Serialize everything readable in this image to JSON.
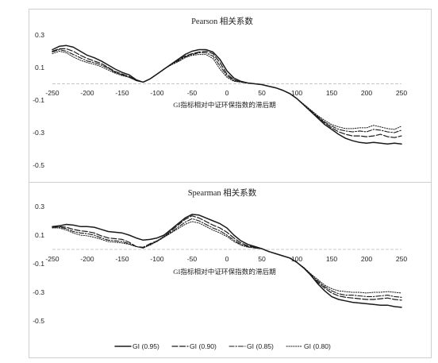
{
  "chart_data": [
    {
      "type": "line",
      "title": "Pearson 相关系数",
      "xlabel": "GI指标相对中证环保指数的滞后期",
      "ylabel": "",
      "xlim": [
        -250,
        250
      ],
      "ylim": [
        -0.5,
        0.3
      ],
      "xticks": [
        -250,
        -200,
        -150,
        -100,
        -50,
        0,
        50,
        100,
        150,
        200,
        250
      ],
      "yticks": [
        0.3,
        0.1,
        -0.1,
        -0.3,
        -0.5
      ],
      "xtick_labels": [
        "-250",
        "-200",
        "-150",
        "-100",
        "-50",
        "0",
        "50",
        "100",
        "150",
        "200",
        "250"
      ],
      "ytick_labels": [
        "0.3",
        "0.1",
        "-0.1",
        "-0.3",
        "-0.5"
      ],
      "zero_line": true,
      "series": [
        {
          "name": "GI (0.95)",
          "style": "solid",
          "x": [
            -250,
            -240,
            -230,
            -220,
            -210,
            -200,
            -190,
            -180,
            -170,
            -160,
            -150,
            -140,
            -130,
            -120,
            -110,
            -100,
            -90,
            -80,
            -70,
            -60,
            -50,
            -40,
            -30,
            -20,
            -10,
            0,
            10,
            20,
            30,
            40,
            50,
            60,
            70,
            80,
            90,
            100,
            110,
            120,
            130,
            140,
            150,
            160,
            170,
            180,
            190,
            200,
            210,
            220,
            230,
            240,
            250
          ],
          "y": [
            0.21,
            0.23,
            0.235,
            0.225,
            0.2,
            0.175,
            0.16,
            0.14,
            0.115,
            0.09,
            0.07,
            0.055,
            0.025,
            0.01,
            0.03,
            0.06,
            0.09,
            0.12,
            0.15,
            0.18,
            0.2,
            0.21,
            0.21,
            0.195,
            0.15,
            0.08,
            0.035,
            0.015,
            0.005,
            0.0,
            -0.005,
            -0.015,
            -0.025,
            -0.04,
            -0.06,
            -0.09,
            -0.13,
            -0.17,
            -0.21,
            -0.25,
            -0.28,
            -0.31,
            -0.335,
            -0.35,
            -0.36,
            -0.365,
            -0.36,
            -0.365,
            -0.37,
            -0.365,
            -0.37
          ]
        },
        {
          "name": "GI (0.90)",
          "style": "dashed",
          "x": [
            -250,
            -240,
            -230,
            -220,
            -210,
            -200,
            -190,
            -180,
            -170,
            -160,
            -150,
            -140,
            -130,
            -120,
            -110,
            -100,
            -90,
            -80,
            -70,
            -60,
            -50,
            -40,
            -30,
            -20,
            -10,
            0,
            10,
            20,
            30,
            40,
            50,
            60,
            70,
            80,
            90,
            100,
            110,
            120,
            130,
            140,
            150,
            160,
            170,
            180,
            190,
            200,
            210,
            220,
            230,
            240,
            250
          ],
          "y": [
            0.2,
            0.215,
            0.215,
            0.2,
            0.175,
            0.155,
            0.14,
            0.125,
            0.1,
            0.075,
            0.06,
            0.045,
            0.02,
            0.01,
            0.03,
            0.06,
            0.09,
            0.12,
            0.145,
            0.17,
            0.185,
            0.195,
            0.2,
            0.185,
            0.13,
            0.06,
            0.025,
            0.01,
            0.005,
            0.0,
            -0.005,
            -0.015,
            -0.025,
            -0.04,
            -0.06,
            -0.09,
            -0.13,
            -0.17,
            -0.205,
            -0.24,
            -0.27,
            -0.295,
            -0.31,
            -0.32,
            -0.32,
            -0.325,
            -0.32,
            -0.31,
            -0.325,
            -0.33,
            -0.32
          ]
        },
        {
          "name": "GI (0.85)",
          "style": "dashdot",
          "x": [
            -250,
            -240,
            -230,
            -220,
            -210,
            -200,
            -190,
            -180,
            -170,
            -160,
            -150,
            -140,
            -130,
            -120,
            -110,
            -100,
            -90,
            -80,
            -70,
            -60,
            -50,
            -40,
            -30,
            -20,
            -10,
            0,
            10,
            20,
            30,
            40,
            50,
            60,
            70,
            80,
            90,
            100,
            110,
            120,
            130,
            140,
            150,
            160,
            170,
            180,
            190,
            200,
            210,
            220,
            230,
            240,
            250
          ],
          "y": [
            0.195,
            0.21,
            0.2,
            0.18,
            0.16,
            0.14,
            0.13,
            0.115,
            0.095,
            0.07,
            0.055,
            0.04,
            0.02,
            0.01,
            0.03,
            0.06,
            0.09,
            0.12,
            0.14,
            0.165,
            0.18,
            0.19,
            0.19,
            0.17,
            0.11,
            0.05,
            0.02,
            0.01,
            0.005,
            0.0,
            -0.005,
            -0.015,
            -0.025,
            -0.04,
            -0.06,
            -0.09,
            -0.13,
            -0.165,
            -0.2,
            -0.235,
            -0.26,
            -0.28,
            -0.29,
            -0.295,
            -0.29,
            -0.295,
            -0.28,
            -0.285,
            -0.295,
            -0.3,
            -0.285
          ]
        },
        {
          "name": "GI (0.80)",
          "style": "dotted",
          "x": [
            -250,
            -240,
            -230,
            -220,
            -210,
            -200,
            -190,
            -180,
            -170,
            -160,
            -150,
            -140,
            -130,
            -120,
            -110,
            -100,
            -90,
            -80,
            -70,
            -60,
            -50,
            -40,
            -30,
            -20,
            -10,
            0,
            10,
            20,
            30,
            40,
            50,
            60,
            70,
            80,
            90,
            100,
            110,
            120,
            130,
            140,
            150,
            160,
            170,
            180,
            190,
            200,
            210,
            220,
            230,
            240,
            250
          ],
          "y": [
            0.185,
            0.2,
            0.19,
            0.165,
            0.145,
            0.13,
            0.12,
            0.105,
            0.085,
            0.065,
            0.05,
            0.04,
            0.02,
            0.01,
            0.03,
            0.06,
            0.09,
            0.115,
            0.135,
            0.16,
            0.175,
            0.18,
            0.18,
            0.155,
            0.09,
            0.04,
            0.015,
            0.01,
            0.005,
            0.0,
            -0.005,
            -0.015,
            -0.025,
            -0.04,
            -0.06,
            -0.09,
            -0.125,
            -0.16,
            -0.195,
            -0.225,
            -0.25,
            -0.265,
            -0.275,
            -0.275,
            -0.27,
            -0.27,
            -0.255,
            -0.265,
            -0.275,
            -0.28,
            -0.26
          ]
        }
      ]
    },
    {
      "type": "line",
      "title": "Spearman 相关系数",
      "xlabel": "GI指标相对中证环保指数的滞后期",
      "ylabel": "",
      "xlim": [
        -250,
        250
      ],
      "ylim": [
        -0.5,
        0.3
      ],
      "xticks": [
        -250,
        -200,
        -150,
        -100,
        -50,
        0,
        50,
        100,
        150,
        200,
        250
      ],
      "yticks": [
        0.3,
        0.1,
        -0.1,
        -0.3,
        -0.5
      ],
      "xtick_labels": [
        "-250",
        "-200",
        "-150",
        "-100",
        "-50",
        "0",
        "50",
        "100",
        "150",
        "200",
        "250"
      ],
      "ytick_labels": [
        "0.3",
        "0.1",
        "-0.1",
        "-0.3",
        "-0.5"
      ],
      "zero_line": true,
      "series": [
        {
          "name": "GI (0.95)",
          "style": "solid",
          "x": [
            -250,
            -240,
            -230,
            -220,
            -210,
            -200,
            -190,
            -180,
            -170,
            -160,
            -150,
            -140,
            -130,
            -120,
            -110,
            -100,
            -90,
            -80,
            -70,
            -60,
            -50,
            -40,
            -30,
            -20,
            -10,
            0,
            10,
            20,
            30,
            40,
            50,
            60,
            70,
            80,
            90,
            100,
            110,
            120,
            130,
            140,
            150,
            160,
            170,
            180,
            190,
            200,
            210,
            220,
            230,
            240,
            250
          ],
          "y": [
            0.16,
            0.165,
            0.175,
            0.17,
            0.16,
            0.16,
            0.155,
            0.14,
            0.125,
            0.12,
            0.115,
            0.1,
            0.08,
            0.065,
            0.07,
            0.08,
            0.1,
            0.14,
            0.18,
            0.22,
            0.245,
            0.24,
            0.22,
            0.2,
            0.18,
            0.15,
            0.1,
            0.06,
            0.035,
            0.02,
            0.005,
            -0.015,
            -0.03,
            -0.045,
            -0.06,
            -0.09,
            -0.13,
            -0.18,
            -0.24,
            -0.29,
            -0.33,
            -0.35,
            -0.36,
            -0.37,
            -0.375,
            -0.38,
            -0.385,
            -0.39,
            -0.39,
            -0.4,
            -0.405
          ]
        },
        {
          "name": "GI (0.90)",
          "style": "dashed",
          "x": [
            -250,
            -240,
            -230,
            -220,
            -210,
            -200,
            -190,
            -180,
            -170,
            -160,
            -150,
            -140,
            -130,
            -120,
            -110,
            -100,
            -90,
            -80,
            -70,
            -60,
            -50,
            -40,
            -30,
            -20,
            -10,
            0,
            10,
            20,
            30,
            40,
            50,
            60,
            70,
            80,
            90,
            100,
            110,
            120,
            130,
            140,
            150,
            160,
            170,
            180,
            190,
            200,
            210,
            220,
            230,
            240,
            250
          ],
          "y": [
            0.155,
            0.16,
            0.155,
            0.14,
            0.13,
            0.125,
            0.115,
            0.095,
            0.08,
            0.075,
            0.07,
            0.05,
            0.02,
            0.015,
            0.04,
            0.06,
            0.09,
            0.13,
            0.17,
            0.21,
            0.235,
            0.22,
            0.195,
            0.17,
            0.15,
            0.12,
            0.08,
            0.045,
            0.025,
            0.015,
            0.005,
            -0.015,
            -0.03,
            -0.045,
            -0.06,
            -0.09,
            -0.13,
            -0.18,
            -0.23,
            -0.27,
            -0.305,
            -0.325,
            -0.335,
            -0.34,
            -0.345,
            -0.35,
            -0.35,
            -0.345,
            -0.34,
            -0.35,
            -0.355
          ]
        },
        {
          "name": "GI (0.85)",
          "style": "dashdot",
          "x": [
            -250,
            -240,
            -230,
            -220,
            -210,
            -200,
            -190,
            -180,
            -170,
            -160,
            -150,
            -140,
            -130,
            -120,
            -110,
            -100,
            -90,
            -80,
            -70,
            -60,
            -50,
            -40,
            -30,
            -20,
            -10,
            0,
            10,
            20,
            30,
            40,
            50,
            60,
            70,
            80,
            90,
            100,
            110,
            120,
            130,
            140,
            150,
            160,
            170,
            180,
            190,
            200,
            210,
            220,
            230,
            240,
            250
          ],
          "y": [
            0.155,
            0.155,
            0.145,
            0.125,
            0.115,
            0.11,
            0.1,
            0.08,
            0.065,
            0.06,
            0.055,
            0.04,
            0.02,
            0.01,
            0.035,
            0.06,
            0.09,
            0.12,
            0.155,
            0.19,
            0.215,
            0.2,
            0.175,
            0.15,
            0.13,
            0.1,
            0.065,
            0.035,
            0.02,
            0.01,
            0.005,
            -0.015,
            -0.03,
            -0.045,
            -0.06,
            -0.09,
            -0.13,
            -0.175,
            -0.22,
            -0.26,
            -0.29,
            -0.31,
            -0.32,
            -0.32,
            -0.325,
            -0.33,
            -0.33,
            -0.325,
            -0.32,
            -0.33,
            -0.335
          ]
        },
        {
          "name": "GI (0.80)",
          "style": "dotted",
          "x": [
            -250,
            -240,
            -230,
            -220,
            -210,
            -200,
            -190,
            -180,
            -170,
            -160,
            -150,
            -140,
            -130,
            -120,
            -110,
            -100,
            -90,
            -80,
            -70,
            -60,
            -50,
            -40,
            -30,
            -20,
            -10,
            0,
            10,
            20,
            30,
            40,
            50,
            60,
            70,
            80,
            90,
            100,
            110,
            120,
            130,
            140,
            150,
            160,
            170,
            180,
            190,
            200,
            210,
            220,
            230,
            240,
            250
          ],
          "y": [
            0.15,
            0.15,
            0.135,
            0.115,
            0.1,
            0.095,
            0.085,
            0.07,
            0.055,
            0.05,
            0.045,
            0.035,
            0.02,
            0.01,
            0.03,
            0.055,
            0.085,
            0.115,
            0.145,
            0.175,
            0.195,
            0.185,
            0.16,
            0.135,
            0.115,
            0.09,
            0.055,
            0.03,
            0.015,
            0.01,
            0.005,
            -0.015,
            -0.03,
            -0.045,
            -0.06,
            -0.09,
            -0.125,
            -0.17,
            -0.21,
            -0.25,
            -0.275,
            -0.29,
            -0.295,
            -0.3,
            -0.3,
            -0.305,
            -0.3,
            -0.3,
            -0.295,
            -0.3,
            -0.305
          ]
        }
      ]
    }
  ],
  "legend": {
    "placement": "bottom-center",
    "items": [
      {
        "label": "GI (0.95)",
        "style": "solid"
      },
      {
        "label": "GI (0.90)",
        "style": "dashed"
      },
      {
        "label": "GI (0.85)",
        "style": "dashdot"
      },
      {
        "label": "GI (0.80)",
        "style": "dotted"
      }
    ]
  },
  "colors": {
    "line": "#1a1a1a",
    "zero_line": "#c8c8c8",
    "frame": "#cfcfcf"
  }
}
